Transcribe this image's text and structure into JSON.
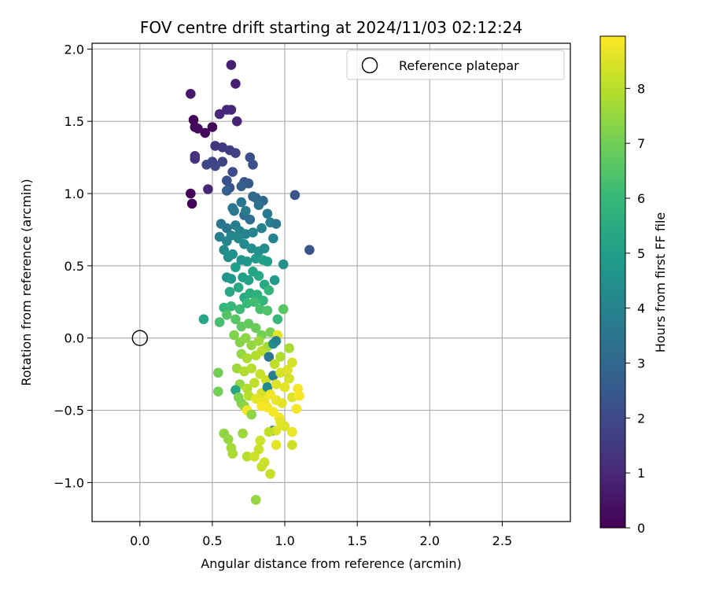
{
  "chart_data": {
    "type": "scatter",
    "title": "FOV centre drift starting at 2024/11/03 02:12:24",
    "xlabel": "Angular distance from reference (arcmin)",
    "ylabel": "Rotation from reference (arcmin)",
    "xlim": [
      -0.33,
      2.97
    ],
    "ylim": [
      -1.27,
      2.04
    ],
    "xticks": [
      0.0,
      0.5,
      1.0,
      1.5,
      2.0,
      2.5
    ],
    "xtick_labels": [
      "0.0",
      "0.5",
      "1.0",
      "1.5",
      "2.0",
      "2.5"
    ],
    "yticks": [
      -1.0,
      -0.5,
      0.0,
      0.5,
      1.0,
      1.5,
      2.0
    ],
    "ytick_labels": [
      "−1.0",
      "−0.5",
      "0.0",
      "0.5",
      "1.0",
      "1.5",
      "2.0"
    ],
    "grid": true,
    "legend": {
      "placement": "top-right",
      "entries": [
        "Reference platepar"
      ]
    },
    "reference_point": {
      "x": 0.0,
      "y": 0.0
    },
    "colorbar": {
      "label": "Hours from first FF file",
      "colormap": "viridis",
      "range": [
        0,
        8.95
      ],
      "ticks": [
        0,
        1,
        2,
        3,
        4,
        5,
        6,
        7,
        8
      ],
      "tick_labels": [
        "0",
        "1",
        "2",
        "3",
        "4",
        "5",
        "6",
        "7",
        "8"
      ]
    },
    "points": [
      [
        0.37,
        1.51,
        0.1
      ],
      [
        0.38,
        1.46,
        0.1
      ],
      [
        0.35,
        1.0,
        0.1
      ],
      [
        0.36,
        0.93,
        0.1
      ],
      [
        0.45,
        1.42,
        0.2
      ],
      [
        0.5,
        1.46,
        0.2
      ],
      [
        0.4,
        1.45,
        0.3
      ],
      [
        0.35,
        1.69,
        0.6
      ],
      [
        0.63,
        1.89,
        0.8
      ],
      [
        0.66,
        1.76,
        0.8
      ],
      [
        0.6,
        1.58,
        1.0
      ],
      [
        0.67,
        1.5,
        0.9
      ],
      [
        0.55,
        1.55,
        1.0
      ],
      [
        0.63,
        1.58,
        1.0
      ],
      [
        0.47,
        1.03,
        1.0
      ],
      [
        0.38,
        1.26,
        1.2
      ],
      [
        0.38,
        1.24,
        1.3
      ],
      [
        0.52,
        1.33,
        1.4
      ],
      [
        0.57,
        1.32,
        1.5
      ],
      [
        0.62,
        1.3,
        1.6
      ],
      [
        0.66,
        1.28,
        1.7
      ],
      [
        0.57,
        1.22,
        1.8
      ],
      [
        0.46,
        1.2,
        1.9
      ],
      [
        0.52,
        1.19,
        2.0
      ],
      [
        0.5,
        1.22,
        1.8
      ],
      [
        0.64,
        1.15,
        2.0
      ],
      [
        0.6,
        1.09,
        2.2
      ],
      [
        0.62,
        1.04,
        2.3
      ],
      [
        0.76,
        1.25,
        2.2
      ],
      [
        0.78,
        1.2,
        2.3
      ],
      [
        0.72,
        1.08,
        2.4
      ],
      [
        0.75,
        1.07,
        2.5
      ],
      [
        0.6,
        1.02,
        2.7
      ],
      [
        0.7,
        1.05,
        2.7
      ],
      [
        0.8,
        0.97,
        2.8
      ],
      [
        0.85,
        0.95,
        3.0
      ],
      [
        0.78,
        0.98,
        3.1
      ],
      [
        1.07,
        0.99,
        2.3
      ],
      [
        1.17,
        0.61,
        2.3
      ],
      [
        0.72,
        0.85,
        3.1
      ],
      [
        0.76,
        0.82,
        3.2
      ],
      [
        0.82,
        0.92,
        3.3
      ],
      [
        0.64,
        0.9,
        3.4
      ],
      [
        0.7,
        0.94,
        3.5
      ],
      [
        0.65,
        0.88,
        3.6
      ],
      [
        0.73,
        0.88,
        3.7
      ],
      [
        0.56,
        0.79,
        3.5
      ],
      [
        0.6,
        0.76,
        3.6
      ],
      [
        0.66,
        0.78,
        3.8
      ],
      [
        0.69,
        0.74,
        3.9
      ],
      [
        0.73,
        0.72,
        4.0
      ],
      [
        0.78,
        0.73,
        4.0
      ],
      [
        0.84,
        0.76,
        3.9
      ],
      [
        0.88,
        0.86,
        3.6
      ],
      [
        0.9,
        0.8,
        3.9
      ],
      [
        0.94,
        0.79,
        3.5
      ],
      [
        0.55,
        0.7,
        3.9
      ],
      [
        0.6,
        0.67,
        4.1
      ],
      [
        0.63,
        0.71,
        4.0
      ],
      [
        0.68,
        0.69,
        4.2
      ],
      [
        0.72,
        0.65,
        4.3
      ],
      [
        0.77,
        0.62,
        4.4
      ],
      [
        0.82,
        0.6,
        4.5
      ],
      [
        0.86,
        0.62,
        4.4
      ],
      [
        0.92,
        0.69,
        4.0
      ],
      [
        0.58,
        0.61,
        4.3
      ],
      [
        0.61,
        0.56,
        4.4
      ],
      [
        0.64,
        0.58,
        4.5
      ],
      [
        0.7,
        0.54,
        4.6
      ],
      [
        0.74,
        0.53,
        4.7
      ],
      [
        0.8,
        0.55,
        4.8
      ],
      [
        0.85,
        0.54,
        5.1
      ],
      [
        0.88,
        0.53,
        5.0
      ],
      [
        0.99,
        0.51,
        4.5
      ],
      [
        0.6,
        0.42,
        4.6
      ],
      [
        0.63,
        0.41,
        4.8
      ],
      [
        0.66,
        0.49,
        5.0
      ],
      [
        0.71,
        0.42,
        5.0
      ],
      [
        0.75,
        0.4,
        5.1
      ],
      [
        0.78,
        0.46,
        5.2
      ],
      [
        0.82,
        0.43,
        5.3
      ],
      [
        0.86,
        0.37,
        5.4
      ],
      [
        0.93,
        0.4,
        4.8
      ],
      [
        0.62,
        0.32,
        5.3
      ],
      [
        0.68,
        0.35,
        5.4
      ],
      [
        0.72,
        0.28,
        5.5
      ],
      [
        0.76,
        0.31,
        5.6
      ],
      [
        0.81,
        0.3,
        5.7
      ],
      [
        0.85,
        0.26,
        5.8
      ],
      [
        0.89,
        0.33,
        5.9
      ],
      [
        0.58,
        0.21,
        5.9
      ],
      [
        0.63,
        0.22,
        6.0
      ],
      [
        0.69,
        0.2,
        6.1
      ],
      [
        0.74,
        0.24,
        6.0
      ],
      [
        0.79,
        0.25,
        6.2
      ],
      [
        0.83,
        0.2,
        6.3
      ],
      [
        0.88,
        0.19,
        6.4
      ],
      [
        0.55,
        0.11,
        6.3
      ],
      [
        0.44,
        0.13,
        5.3
      ],
      [
        0.6,
        0.16,
        6.5
      ],
      [
        0.66,
        0.13,
        6.6
      ],
      [
        0.7,
        0.08,
        6.7
      ],
      [
        0.75,
        0.1,
        6.8
      ],
      [
        0.8,
        0.07,
        6.9
      ],
      [
        0.84,
        0.02,
        7.0
      ],
      [
        0.9,
        0.04,
        7.1
      ],
      [
        0.99,
        0.2,
        6.6
      ],
      [
        0.95,
        0.13,
        6.0
      ],
      [
        0.65,
        0.02,
        7.2
      ],
      [
        0.69,
        -0.03,
        7.3
      ],
      [
        0.73,
        0.0,
        7.4
      ],
      [
        0.77,
        -0.05,
        7.5
      ],
      [
        0.82,
        -0.02,
        7.6
      ],
      [
        0.88,
        -0.06,
        7.7
      ],
      [
        0.92,
        -0.04,
        4.5
      ],
      [
        0.95,
        0.02,
        8.6
      ],
      [
        0.94,
        -0.02,
        4.0
      ],
      [
        0.7,
        -0.11,
        7.5
      ],
      [
        0.74,
        -0.14,
        7.8
      ],
      [
        0.8,
        -0.12,
        7.9
      ],
      [
        0.84,
        -0.09,
        8.0
      ],
      [
        0.89,
        -0.13,
        3.5
      ],
      [
        0.93,
        -0.18,
        8.1
      ],
      [
        0.97,
        -0.13,
        7.9
      ],
      [
        1.03,
        -0.07,
        7.8
      ],
      [
        0.67,
        -0.21,
        7.6
      ],
      [
        0.72,
        -0.23,
        7.9
      ],
      [
        0.77,
        -0.21,
        8.0
      ],
      [
        0.83,
        -0.25,
        8.2
      ],
      [
        0.87,
        -0.29,
        8.3
      ],
      [
        0.92,
        -0.26,
        3.8
      ],
      [
        0.97,
        -0.24,
        8.4
      ],
      [
        1.02,
        -0.22,
        8.5
      ],
      [
        1.05,
        -0.17,
        8.4
      ],
      [
        0.54,
        -0.24,
        7.0
      ],
      [
        0.69,
        -0.32,
        7.5
      ],
      [
        0.74,
        -0.35,
        7.9
      ],
      [
        0.79,
        -0.31,
        8.1
      ],
      [
        0.84,
        -0.38,
        8.4
      ],
      [
        0.88,
        -0.34,
        4.3
      ],
      [
        0.94,
        -0.32,
        8.5
      ],
      [
        1.0,
        -0.34,
        8.6
      ],
      [
        1.03,
        -0.28,
        8.4
      ],
      [
        0.66,
        -0.36,
        5.2
      ],
      [
        0.54,
        -0.37,
        7.0
      ],
      [
        0.7,
        -0.45,
        7.2
      ],
      [
        0.75,
        -0.4,
        8.0
      ],
      [
        0.8,
        -0.42,
        8.6
      ],
      [
        0.86,
        -0.44,
        8.7
      ],
      [
        0.9,
        -0.39,
        8.8
      ],
      [
        0.94,
        -0.43,
        8.7
      ],
      [
        0.98,
        -0.45,
        8.6
      ],
      [
        1.05,
        -0.41,
        8.5
      ],
      [
        1.09,
        -0.35,
        8.8
      ],
      [
        1.1,
        -0.4,
        8.9
      ],
      [
        0.68,
        -0.41,
        7.2
      ],
      [
        0.72,
        -0.47,
        7.4
      ],
      [
        0.74,
        -0.5,
        8.8
      ],
      [
        0.84,
        -0.47,
        8.9
      ],
      [
        0.88,
        -0.48,
        8.8
      ],
      [
        0.92,
        -0.51,
        8.8
      ],
      [
        0.96,
        -0.55,
        8.8
      ],
      [
        1.08,
        -0.49,
        8.8
      ],
      [
        0.77,
        -0.53,
        7.4
      ],
      [
        0.97,
        -0.58,
        8.6
      ],
      [
        1.0,
        -0.61,
        8.5
      ],
      [
        0.92,
        -0.64,
        4.0
      ],
      [
        0.94,
        -0.64,
        8.5
      ],
      [
        0.58,
        -0.66,
        7.4
      ],
      [
        0.61,
        -0.7,
        7.5
      ],
      [
        0.63,
        -0.76,
        7.7
      ],
      [
        0.64,
        -0.8,
        7.8
      ],
      [
        0.71,
        -0.66,
        7.6
      ],
      [
        0.89,
        -0.65,
        8.1
      ],
      [
        1.05,
        -0.65,
        8.7
      ],
      [
        0.83,
        -0.71,
        8.3
      ],
      [
        0.82,
        -0.77,
        8.2
      ],
      [
        0.74,
        -0.82,
        8.0
      ],
      [
        0.79,
        -0.82,
        8.3
      ],
      [
        0.86,
        -0.86,
        8.3
      ],
      [
        0.84,
        -0.89,
        8.2
      ],
      [
        0.9,
        -0.94,
        8.2
      ],
      [
        0.94,
        -0.74,
        8.6
      ],
      [
        1.05,
        -0.74,
        8.3
      ],
      [
        0.8,
        -1.12,
        7.5
      ]
    ]
  }
}
